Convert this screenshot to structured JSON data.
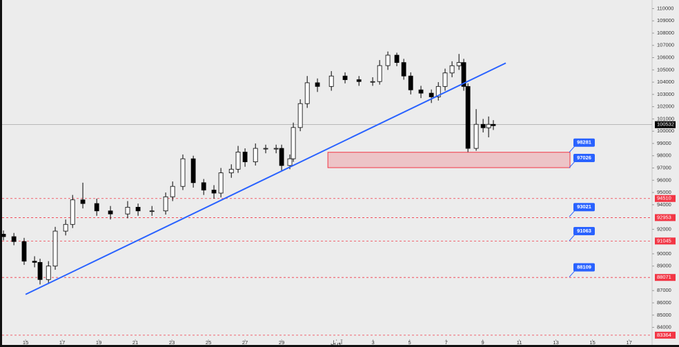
{
  "chart_data": {
    "type": "candlestick",
    "x": [
      -1.21,
      -0.64,
      -0.08,
      0.49,
      0.79,
      1.25,
      1.62,
      2.19,
      2.57,
      3.13,
      3.89,
      4.64,
      5.58,
      6.15,
      6.91,
      7.66,
      8.04,
      8.6,
      9.17,
      9.74,
      10.3,
      10.68,
      11.25,
      11.62,
      12,
      12.57,
      13.13,
      13.7,
      14,
      14.45,
      14.64,
      15.02,
      15.4,
      15.96,
      16.72,
      17.47,
      18.23,
      18.98,
      19.36,
      19.81,
      20.3,
      20.68,
      21.06,
      21.62,
      22.19,
      22.57,
      22.94,
      23.32,
      23.7,
      23.96,
      24.19,
      24.64,
      25.02,
      25.32,
      25.58
    ],
    "open": [
      91600,
      91400,
      91000,
      89400,
      89300,
      87900,
      89000,
      91850,
      92400,
      94400,
      94100,
      93500,
      93250,
      93800,
      93500,
      93500,
      94650,
      95500,
      97750,
      95800,
      95200,
      94950,
      96600,
      96900,
      98300,
      97500,
      98600,
      98600,
      98600,
      97200,
      97750,
      100300,
      102250,
      103950,
      103650,
      104500,
      104200,
      104050,
      104050,
      105350,
      106200,
      105600,
      104500,
      103370,
      103100,
      102800,
      103650,
      104750,
      105340,
      105600,
      103650,
      98600,
      100560,
      100280,
      100560
    ],
    "high": [
      91900,
      91700,
      91300,
      89800,
      89600,
      89400,
      92200,
      92800,
      94800,
      95800,
      94500,
      93900,
      94300,
      94100,
      93900,
      95000,
      95900,
      98100,
      98000,
      96100,
      95600,
      97000,
      97300,
      98800,
      98600,
      99000,
      98900,
      98900,
      98900,
      98100,
      100700,
      102600,
      104500,
      104300,
      104900,
      104800,
      104500,
      104400,
      105800,
      106500,
      106400,
      105900,
      104800,
      103700,
      103400,
      104000,
      105100,
      105700,
      106300,
      105900,
      103900,
      101800,
      101000,
      101200,
      100900
    ],
    "low": [
      91100,
      90700,
      89100,
      88900,
      87500,
      87600,
      88700,
      91500,
      92100,
      93700,
      93100,
      92800,
      92900,
      93100,
      93100,
      93200,
      94300,
      95200,
      95400,
      94800,
      94500,
      94600,
      96200,
      96600,
      97100,
      97200,
      98200,
      98200,
      96800,
      96900,
      97500,
      100000,
      101900,
      103200,
      103300,
      103900,
      103700,
      103700,
      103800,
      105000,
      105300,
      104200,
      103000,
      102700,
      102300,
      102500,
      103300,
      104400,
      105000,
      103300,
      98300,
      98400,
      99900,
      99500,
      100100
    ],
    "close": [
      91400,
      91000,
      89400,
      89300,
      87900,
      89000,
      91850,
      92400,
      94400,
      94100,
      93500,
      93250,
      93800,
      93500,
      93500,
      94650,
      95500,
      97750,
      95800,
      95200,
      94950,
      96600,
      96900,
      98300,
      97500,
      98600,
      98600,
      98600,
      97200,
      97750,
      100300,
      102250,
      103950,
      103650,
      104500,
      104200,
      104050,
      104050,
      105350,
      106200,
      105600,
      104500,
      103370,
      103100,
      102800,
      103650,
      104750,
      105340,
      105600,
      103650,
      98600,
      100560,
      100280,
      100560,
      100450
    ],
    "up_color": "#ffffff",
    "down_color": "#000000",
    "xlim": [
      -1.4,
      34.26
    ],
    "ylim": [
      82400,
      110700
    ],
    "xticks": [
      {
        "value": 0,
        "label": "15"
      },
      {
        "value": 2,
        "label": "17"
      },
      {
        "value": 4,
        "label": "19"
      },
      {
        "value": 6,
        "label": "21"
      },
      {
        "value": 8,
        "label": "23"
      },
      {
        "value": 10,
        "label": "25"
      },
      {
        "value": 12,
        "label": "27"
      },
      {
        "value": 14,
        "label": "29"
      },
      {
        "value": 17,
        "label": "آوریل"
      },
      {
        "value": 19,
        "label": "3"
      },
      {
        "value": 21,
        "label": "5"
      },
      {
        "value": 23,
        "label": "7"
      },
      {
        "value": 25,
        "label": "9"
      },
      {
        "value": 27,
        "label": "11"
      },
      {
        "value": 29,
        "label": "13"
      },
      {
        "value": 31,
        "label": "15"
      },
      {
        "value": 33,
        "label": "17"
      }
    ],
    "yticks": [
      84000,
      85000,
      86000,
      87000,
      89000,
      90000,
      92000,
      94000,
      95000,
      96000,
      97000,
      98000,
      99000,
      100000,
      101000,
      102000,
      103000,
      104000,
      105000,
      106000,
      107000,
      108000,
      109000,
      110000
    ],
    "current_price": 100532,
    "trendline": {
      "x": [
        0,
        26.26
      ],
      "y": [
        86690,
        105560
      ],
      "color": "#2962ff"
    },
    "zone": {
      "x": [
        16.53,
        29.77
      ],
      "y": [
        98281,
        97026
      ],
      "color": "#f23645"
    },
    "callouts": [
      98281,
      97026,
      93021,
      91063,
      88109
    ],
    "levels": [
      94510,
      92953,
      91045,
      88071,
      83364
    ]
  }
}
